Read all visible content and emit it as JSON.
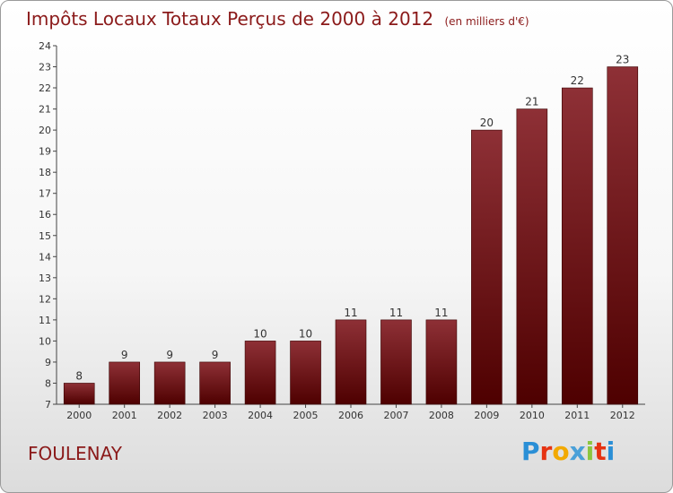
{
  "header": {
    "title": "Impôts Locaux Totaux Perçus de 2000 à 2012",
    "unit": "(en milliers d'€)"
  },
  "footer": {
    "place": "FOULENAY",
    "logo_letters": [
      "P",
      "r",
      "o",
      "x",
      "i",
      "t",
      "i"
    ],
    "logo_colors": [
      "#2a8fd6",
      "#e63312",
      "#f2a900",
      "#4aa0d8",
      "#8cc63f",
      "#e63312",
      "#2a8fd6"
    ]
  },
  "colors": {
    "bar_top": "#8e3036",
    "bar_bottom": "#4e0000",
    "axis": "#444444",
    "title": "#8b1a1a"
  },
  "chart_data": {
    "type": "bar",
    "title": "Impôts Locaux Totaux Perçus de 2000 à 2012",
    "subtitle": "(en milliers d'€)",
    "categories": [
      "2000",
      "2001",
      "2002",
      "2003",
      "2004",
      "2005",
      "2006",
      "2007",
      "2008",
      "2009",
      "2010",
      "2011",
      "2012"
    ],
    "values": [
      8,
      9,
      9,
      9,
      10,
      10,
      11,
      11,
      11,
      20,
      21,
      22,
      23
    ],
    "ylim": [
      7,
      24
    ],
    "yticks": [
      7,
      8,
      9,
      10,
      11,
      12,
      13,
      14,
      15,
      16,
      17,
      18,
      19,
      20,
      21,
      22,
      23,
      24
    ],
    "grid": false,
    "legend": false
  }
}
